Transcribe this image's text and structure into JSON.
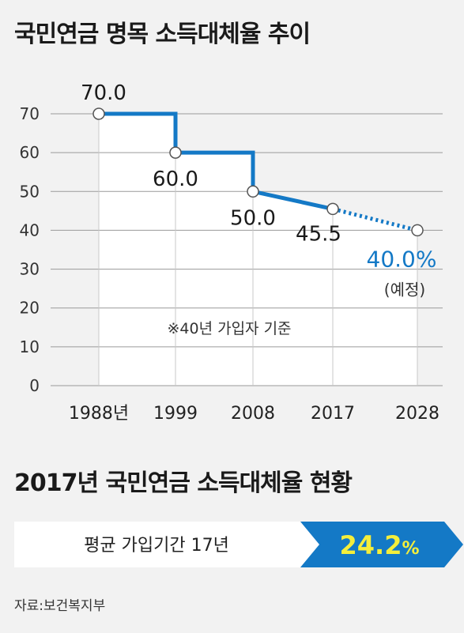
{
  "title": "국민연금 명목 소득대체율 추이",
  "chart_data": {
    "type": "line",
    "title": "국민연금 명목 소득대체율 추이",
    "x_labels": [
      "1988년",
      "1999",
      "2008",
      "2017",
      "2028"
    ],
    "points": [
      {
        "x": "1988년",
        "y": 70.0,
        "label": "70.0"
      },
      {
        "x": "1999",
        "y": 60.0,
        "label": "60.0"
      },
      {
        "x": "2008",
        "y": 50.0,
        "label": "50.0"
      },
      {
        "x": "2017",
        "y": 45.5,
        "label": "45.5"
      },
      {
        "x": "2028",
        "y": 40.0,
        "label": "40.0%",
        "note": "(예정)",
        "projected": true
      }
    ],
    "y_ticks": [
      0,
      10,
      20,
      30,
      40,
      50,
      60,
      70
    ],
    "ylim": [
      0,
      70
    ],
    "grid": true,
    "annotation": "※40년 가입자 기준",
    "colors": {
      "line": "#1479c6",
      "projected": "#1479c6",
      "label": "#1a1a1a",
      "projected_label": "#1479c6"
    }
  },
  "status": {
    "title": "2017년 국민연금 소득대체율 현황",
    "label": "평균 가입기간 17년",
    "value": "24.2",
    "unit": "%",
    "colors": {
      "arrow": "#1479c6",
      "value": "#f4ee3b"
    }
  },
  "source": "자료:보건복지부"
}
